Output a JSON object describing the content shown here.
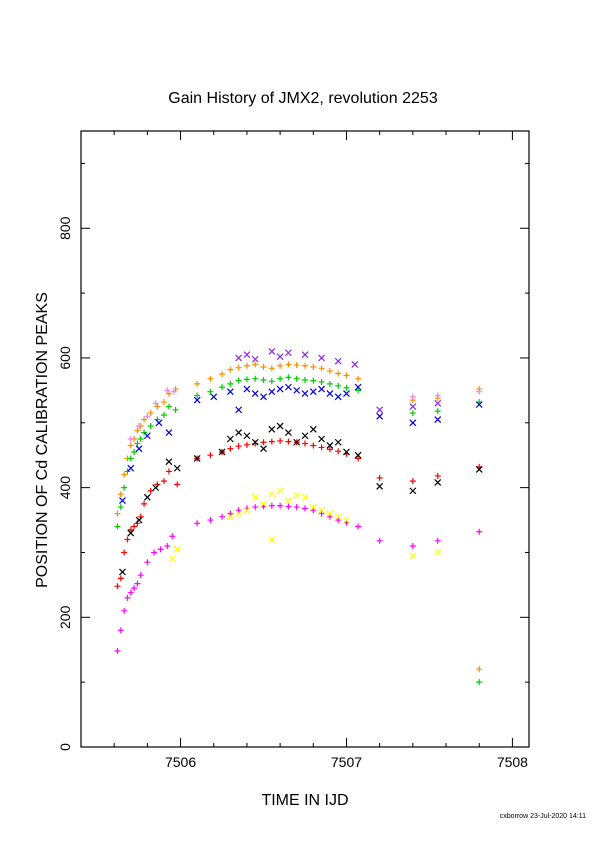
{
  "chart_data": {
    "type": "scatter",
    "title": "Gain History of JMX2, revolution 2253",
    "xlabel": "TIME IN IJD",
    "ylabel": "POSITION OF Cd CALIBRATION PEAKS",
    "xlim": [
      7505.4,
      7508.1
    ],
    "ylim": [
      0,
      950
    ],
    "x_ticks": [
      7506,
      7507,
      7508
    ],
    "y_ticks": [
      0,
      200,
      400,
      600,
      800
    ],
    "grid": false,
    "legend": "none",
    "series": [
      {
        "color": "#ff8c00",
        "marker": "plus",
        "points": [
          [
            7505.62,
            360
          ],
          [
            7505.64,
            390
          ],
          [
            7505.66,
            420
          ],
          [
            7505.68,
            445
          ],
          [
            7505.7,
            465
          ],
          [
            7505.72,
            475
          ],
          [
            7505.74,
            488
          ],
          [
            7505.76,
            495
          ],
          [
            7505.78,
            505
          ],
          [
            7505.82,
            515
          ],
          [
            7505.86,
            525
          ],
          [
            7505.9,
            532
          ],
          [
            7505.93,
            545
          ],
          [
            7505.97,
            552
          ],
          [
            7506.1,
            560
          ],
          [
            7506.18,
            568
          ],
          [
            7506.25,
            575
          ],
          [
            7506.3,
            582
          ],
          [
            7506.35,
            585
          ],
          [
            7506.4,
            588
          ],
          [
            7506.45,
            590
          ],
          [
            7506.5,
            586
          ],
          [
            7506.55,
            584
          ],
          [
            7506.6,
            588
          ],
          [
            7506.65,
            590
          ],
          [
            7506.7,
            589
          ],
          [
            7506.75,
            588
          ],
          [
            7506.8,
            586
          ],
          [
            7506.85,
            584
          ],
          [
            7506.9,
            580
          ],
          [
            7506.95,
            576
          ],
          [
            7507.0,
            573
          ],
          [
            7507.07,
            568
          ],
          [
            7507.4,
            535
          ],
          [
            7507.55,
            538
          ],
          [
            7507.8,
            552
          ],
          [
            7507.8,
            120
          ]
        ]
      },
      {
        "color": "#ee82ee",
        "marker": "plus",
        "points": [
          [
            7505.7,
            475
          ],
          [
            7505.75,
            495
          ],
          [
            7505.8,
            510
          ],
          [
            7505.85,
            530
          ],
          [
            7505.92,
            550
          ],
          [
            7505.96,
            548
          ],
          [
            7507.4,
            540
          ],
          [
            7507.55,
            542
          ],
          [
            7507.8,
            548
          ]
        ]
      },
      {
        "color": "#00cc00",
        "marker": "plus",
        "points": [
          [
            7505.62,
            340
          ],
          [
            7505.64,
            370
          ],
          [
            7505.66,
            400
          ],
          [
            7505.68,
            425
          ],
          [
            7505.7,
            445
          ],
          [
            7505.72,
            455
          ],
          [
            7505.74,
            468
          ],
          [
            7505.76,
            475
          ],
          [
            7505.78,
            485
          ],
          [
            7505.82,
            495
          ],
          [
            7505.86,
            505
          ],
          [
            7505.9,
            512
          ],
          [
            7505.93,
            525
          ],
          [
            7505.97,
            520
          ],
          [
            7506.1,
            542
          ],
          [
            7506.18,
            548
          ],
          [
            7506.25,
            555
          ],
          [
            7506.3,
            560
          ],
          [
            7506.35,
            565
          ],
          [
            7506.4,
            567
          ],
          [
            7506.45,
            568
          ],
          [
            7506.5,
            566
          ],
          [
            7506.55,
            564
          ],
          [
            7506.6,
            568
          ],
          [
            7506.65,
            570
          ],
          [
            7506.7,
            568
          ],
          [
            7506.75,
            566
          ],
          [
            7506.8,
            565
          ],
          [
            7506.85,
            563
          ],
          [
            7506.9,
            560
          ],
          [
            7506.95,
            557
          ],
          [
            7507.0,
            554
          ],
          [
            7507.07,
            550
          ],
          [
            7507.4,
            515
          ],
          [
            7507.55,
            518
          ],
          [
            7507.8,
            532
          ],
          [
            7507.8,
            100
          ]
        ]
      },
      {
        "color": "#0000dd",
        "marker": "cross",
        "points": [
          [
            7505.65,
            380
          ],
          [
            7505.7,
            430
          ],
          [
            7505.75,
            460
          ],
          [
            7505.8,
            480
          ],
          [
            7505.87,
            500
          ],
          [
            7505.93,
            485
          ],
          [
            7506.1,
            535
          ],
          [
            7506.2,
            540
          ],
          [
            7506.3,
            548
          ],
          [
            7506.35,
            520
          ],
          [
            7506.4,
            552
          ],
          [
            7506.45,
            545
          ],
          [
            7506.5,
            540
          ],
          [
            7506.55,
            548
          ],
          [
            7506.6,
            552
          ],
          [
            7506.65,
            555
          ],
          [
            7506.7,
            550
          ],
          [
            7506.75,
            545
          ],
          [
            7506.8,
            548
          ],
          [
            7506.85,
            552
          ],
          [
            7506.9,
            545
          ],
          [
            7506.95,
            540
          ],
          [
            7507.0,
            545
          ],
          [
            7507.07,
            555
          ],
          [
            7507.2,
            510
          ],
          [
            7507.4,
            500
          ],
          [
            7507.55,
            505
          ],
          [
            7507.8,
            528
          ]
        ]
      },
      {
        "color": "#8a2be2",
        "marker": "cross",
        "points": [
          [
            7506.35,
            600
          ],
          [
            7506.4,
            605
          ],
          [
            7506.45,
            598
          ],
          [
            7506.55,
            610
          ],
          [
            7506.6,
            602
          ],
          [
            7506.65,
            608
          ],
          [
            7506.75,
            605
          ],
          [
            7506.85,
            600
          ],
          [
            7506.95,
            595
          ],
          [
            7507.05,
            590
          ],
          [
            7507.2,
            520
          ],
          [
            7507.4,
            525
          ],
          [
            7507.55,
            530
          ]
        ]
      },
      {
        "color": "#ff0000",
        "marker": "plus",
        "points": [
          [
            7505.62,
            248
          ],
          [
            7505.64,
            260
          ],
          [
            7505.66,
            300
          ],
          [
            7505.68,
            320
          ],
          [
            7505.7,
            335
          ],
          [
            7505.72,
            340
          ],
          [
            7505.74,
            345
          ],
          [
            7505.76,
            355
          ],
          [
            7505.78,
            375
          ],
          [
            7505.82,
            395
          ],
          [
            7505.86,
            405
          ],
          [
            7505.9,
            410
          ],
          [
            7505.93,
            425
          ],
          [
            7505.98,
            405
          ],
          [
            7506.1,
            445
          ],
          [
            7506.18,
            450
          ],
          [
            7506.25,
            455
          ],
          [
            7506.3,
            460
          ],
          [
            7506.35,
            464
          ],
          [
            7506.4,
            466
          ],
          [
            7506.45,
            468
          ],
          [
            7506.5,
            470
          ],
          [
            7506.55,
            471
          ],
          [
            7506.6,
            472
          ],
          [
            7506.65,
            471
          ],
          [
            7506.7,
            470
          ],
          [
            7506.75,
            468
          ],
          [
            7506.8,
            465
          ],
          [
            7506.85,
            462
          ],
          [
            7506.9,
            459
          ],
          [
            7506.95,
            456
          ],
          [
            7507.0,
            452
          ],
          [
            7507.07,
            445
          ],
          [
            7507.2,
            415
          ],
          [
            7507.4,
            410
          ],
          [
            7507.55,
            418
          ],
          [
            7507.8,
            432
          ]
        ]
      },
      {
        "color": "#000000",
        "marker": "cross",
        "points": [
          [
            7505.65,
            270
          ],
          [
            7505.7,
            330
          ],
          [
            7505.75,
            350
          ],
          [
            7505.8,
            385
          ],
          [
            7505.85,
            400
          ],
          [
            7505.93,
            440
          ],
          [
            7505.98,
            430
          ],
          [
            7506.1,
            445
          ],
          [
            7506.25,
            455
          ],
          [
            7506.3,
            475
          ],
          [
            7506.35,
            485
          ],
          [
            7506.4,
            480
          ],
          [
            7506.45,
            470
          ],
          [
            7506.5,
            460
          ],
          [
            7506.55,
            490
          ],
          [
            7506.6,
            495
          ],
          [
            7506.65,
            485
          ],
          [
            7506.7,
            470
          ],
          [
            7506.75,
            480
          ],
          [
            7506.8,
            490
          ],
          [
            7506.85,
            475
          ],
          [
            7506.9,
            465
          ],
          [
            7506.95,
            470
          ],
          [
            7507.0,
            455
          ],
          [
            7507.07,
            450
          ],
          [
            7507.2,
            402
          ],
          [
            7507.4,
            395
          ],
          [
            7507.55,
            408
          ],
          [
            7507.8,
            428
          ]
        ]
      },
      {
        "color": "#ff00ff",
        "marker": "plus",
        "points": [
          [
            7505.62,
            148
          ],
          [
            7505.64,
            180
          ],
          [
            7505.66,
            210
          ],
          [
            7505.68,
            230
          ],
          [
            7505.7,
            238
          ],
          [
            7505.72,
            245
          ],
          [
            7505.74,
            252
          ],
          [
            7505.76,
            265
          ],
          [
            7505.8,
            285
          ],
          [
            7505.84,
            300
          ],
          [
            7505.88,
            305
          ],
          [
            7505.92,
            310
          ],
          [
            7505.95,
            325
          ],
          [
            7506.1,
            345
          ],
          [
            7506.18,
            350
          ],
          [
            7506.25,
            355
          ],
          [
            7506.3,
            360
          ],
          [
            7506.35,
            365
          ],
          [
            7506.4,
            368
          ],
          [
            7506.45,
            370
          ],
          [
            7506.5,
            371
          ],
          [
            7506.55,
            372
          ],
          [
            7506.6,
            372
          ],
          [
            7506.65,
            371
          ],
          [
            7506.7,
            370
          ],
          [
            7506.75,
            368
          ],
          [
            7506.8,
            365
          ],
          [
            7506.85,
            360
          ],
          [
            7506.9,
            355
          ],
          [
            7506.95,
            350
          ],
          [
            7507.0,
            346
          ],
          [
            7507.07,
            340
          ],
          [
            7507.2,
            318
          ],
          [
            7507.4,
            310
          ],
          [
            7507.55,
            318
          ],
          [
            7507.8,
            332
          ]
        ]
      },
      {
        "color": "#ffff00",
        "marker": "cross",
        "points": [
          [
            7505.95,
            290
          ],
          [
            7505.98,
            305
          ],
          [
            7506.3,
            355
          ],
          [
            7506.35,
            360
          ],
          [
            7506.4,
            365
          ],
          [
            7506.45,
            385
          ],
          [
            7506.5,
            375
          ],
          [
            7506.55,
            390
          ],
          [
            7506.6,
            395
          ],
          [
            7506.65,
            380
          ],
          [
            7506.7,
            388
          ],
          [
            7506.75,
            385
          ],
          [
            7506.8,
            370
          ],
          [
            7506.85,
            365
          ],
          [
            7506.9,
            360
          ],
          [
            7506.95,
            355
          ],
          [
            7507.0,
            350
          ],
          [
            7506.55,
            320
          ],
          [
            7507.4,
            295
          ],
          [
            7507.55,
            300
          ]
        ]
      }
    ]
  },
  "footer": "cxborrow 23-Jul-2020 14:11"
}
